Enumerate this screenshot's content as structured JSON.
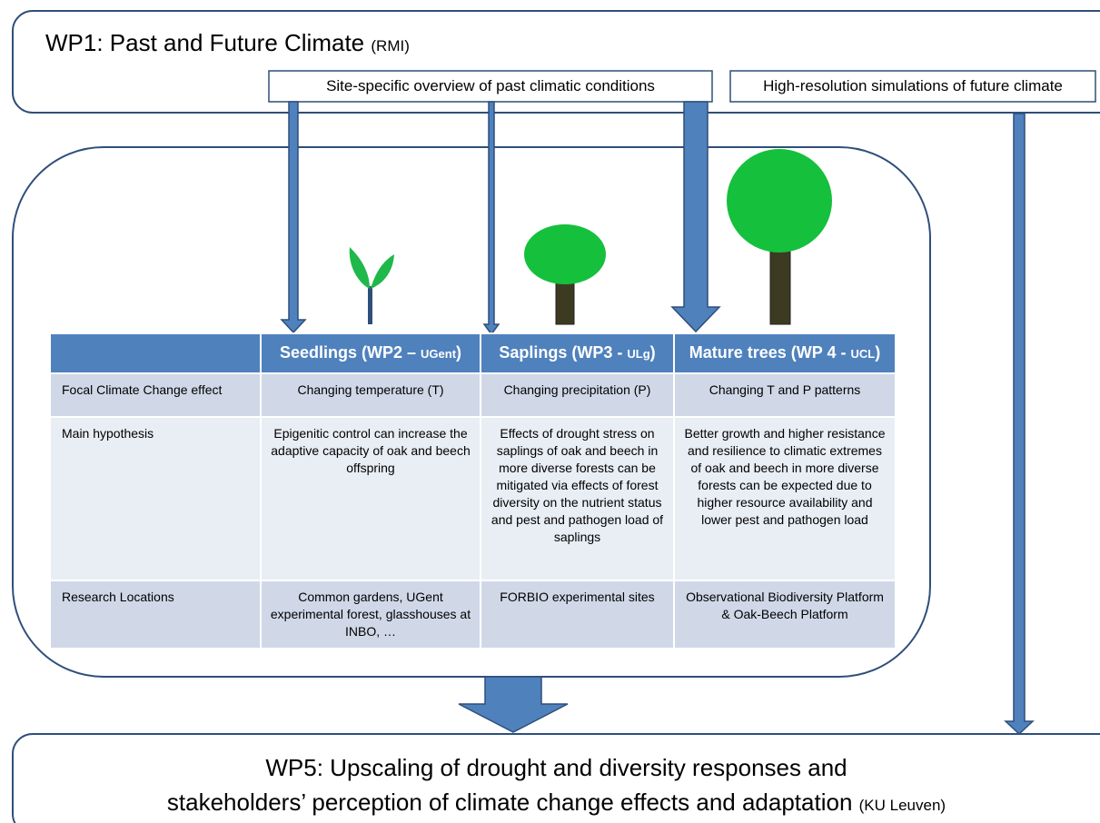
{
  "wp1": {
    "title": "WP1: Past and Future Climate",
    "lead": "(RMI)",
    "outputs": [
      "Site-specific overview of past climatic conditions",
      "High-resolution simulations of future climate"
    ]
  },
  "table": {
    "header": [
      {
        "text": "Seedlings (WP2 –",
        "lead": "UGent",
        "end": ")"
      },
      {
        "text": "Saplings (WP3 -",
        "lead": "ULg",
        "end": ")"
      },
      {
        "text": "Mature trees (WP 4 -",
        "lead": "UCL",
        "end": ")"
      }
    ],
    "rows": [
      {
        "label": "Focal Climate Change  effect",
        "cells": [
          "Changing temperature (T)",
          "Changing precipitation (P)",
          "Changing T and P patterns"
        ]
      },
      {
        "label": "Main hypothesis",
        "cells": [
          "Epigenitic control can increase the adaptive capacity  of oak and beech offspring",
          "Effects of drought stress on saplings of oak and beech in more diverse forests  can be mitigated via effects of forest diversity on the nutrient status and pest and pathogen load of saplings",
          "Better growth and higher resistance and resilience to climatic extremes of oak and beech in more diverse forests can be expected due to higher resource availability and lower pest and pathogen load"
        ]
      },
      {
        "label": "Research Locations",
        "cells": [
          "Common gardens,  UGent experimental forest, glasshouses at INBO, …",
          "FORBIO experimental sites",
          "Observational Biodiversity Platform & Oak-Beech Platform"
        ]
      }
    ]
  },
  "wp5": {
    "line1": "WP5: Upscaling of drought and diversity responses and",
    "line2": "stakeholders’ perception of climate change effects and adaptation",
    "lead": "(KU Leuven)"
  }
}
